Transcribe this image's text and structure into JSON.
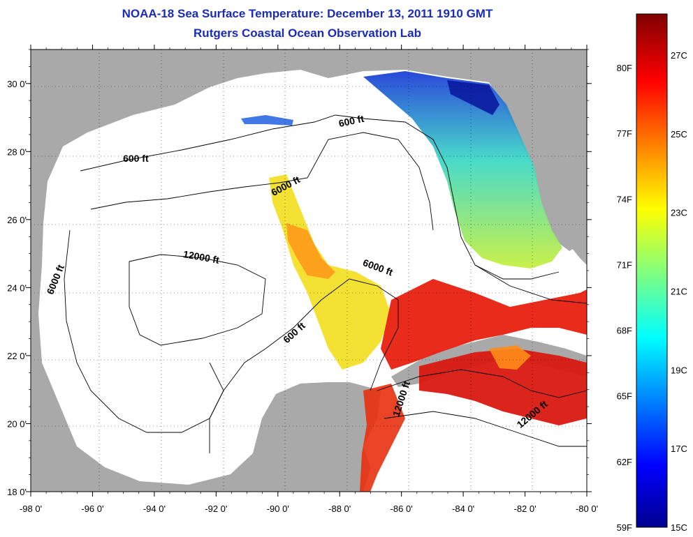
{
  "title_line1": "NOAA-18 Sea Surface Temperature:  December 13, 2011 1910 GMT",
  "title_line2": "Rutgers Coastal Ocean Observation Lab",
  "map": {
    "lon_ticks": [
      "-98 0'",
      "-96 0'",
      "-94 0'",
      "-92 0'",
      "-90 0'",
      "-88 0'",
      "-86 0'",
      "-84 0'",
      "-82 0'",
      "-80 0'"
    ],
    "lat_ticks": [
      "18 0'",
      "20 0'",
      "22 0'",
      "24 0'",
      "26 0'",
      "28 0'",
      "30 0'"
    ],
    "lon_range": [
      -98,
      -80
    ],
    "lat_range": [
      18,
      31
    ],
    "land_color": "#a9a9a9",
    "water_nodata_color": "#ffffff",
    "contour_labels": [
      {
        "text": "600 ft",
        "lon": -94.6,
        "lat": 27.7,
        "rotate": 0
      },
      {
        "text": "600 ft",
        "lon": -87.6,
        "lat": 28.8,
        "rotate": -12
      },
      {
        "text": "6000 ft",
        "lon": -89.7,
        "lat": 26.9,
        "rotate": -28
      },
      {
        "text": "6000 ft",
        "lon": -97.1,
        "lat": 24.2,
        "rotate": -68
      },
      {
        "text": "12000 ft",
        "lon": -92.5,
        "lat": 24.8,
        "rotate": 10
      },
      {
        "text": "6000 ft",
        "lon": -86.8,
        "lat": 24.5,
        "rotate": 20
      },
      {
        "text": "600 ft",
        "lon": -89.4,
        "lat": 22.6,
        "rotate": -42
      },
      {
        "text": "12000 ft",
        "lon": -85.9,
        "lat": 20.7,
        "rotate": -72
      },
      {
        "text": "12000 ft",
        "lon": -81.7,
        "lat": 20.2,
        "rotate": -40
      }
    ]
  },
  "colorbar": {
    "fahrenheit_labels": [
      "80F",
      "77F",
      "74F",
      "71F",
      "68F",
      "65F",
      "62F",
      "59F"
    ],
    "celsius_labels": [
      "27C",
      "25C",
      "23C",
      "21C",
      "19C",
      "17C",
      "15C"
    ]
  }
}
